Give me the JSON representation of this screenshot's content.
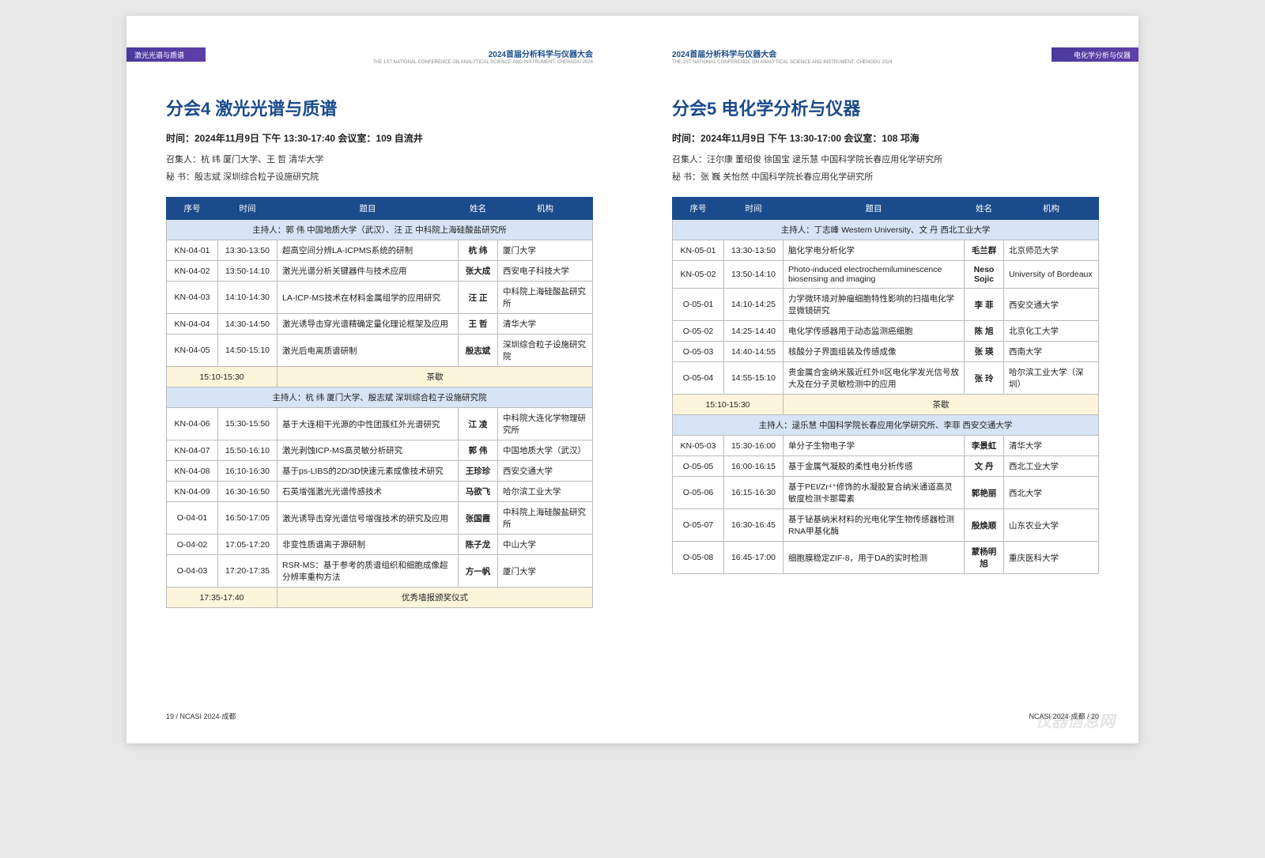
{
  "conference_header": "2024首届分析科学与仪器大会",
  "conference_sub": "THE 1ST NATIONAL CONFERENCE ON ANALYTICAL SCIENCE AND INSTRUMENT, CHENGDU 2024",
  "left_page": {
    "band_label": "激光光谱与质谱",
    "footer": "19 / NCASI 2024·成都",
    "title": "分会4  激光光谱与质谱",
    "info": "时间：2024年11月9日 下午   13:30-17:40   会议室：109 自流井",
    "conveners": "召集人：杭 纬 厦门大学、王 哲 清华大学",
    "secretary": "秘   书：殷志斌 深圳综合粒子设施研究院",
    "columns": {
      "id": "序号",
      "time": "时间",
      "title": "题目",
      "name": "姓名",
      "org": "机构"
    },
    "host1": "主持人：郭 伟 中国地质大学（武汉）、汪 正 中科院上海硅酸盐研究所",
    "rows1": [
      {
        "id": "KN-04-01",
        "time": "13:30-13:50",
        "title": "超高空间分辨LA-ICPMS系统的研制",
        "name": "杭 纬",
        "org": "厦门大学"
      },
      {
        "id": "KN-04-02",
        "time": "13:50-14:10",
        "title": "激光光谱分析关键器件与技术应用",
        "name": "张大成",
        "org": "西安电子科技大学"
      },
      {
        "id": "KN-04-03",
        "time": "14:10-14:30",
        "title": "LA-ICP-MS技术在材料金属组学的应用研究",
        "name": "汪 正",
        "org": "中科院上海硅酸盐研究所"
      },
      {
        "id": "KN-04-04",
        "time": "14:30-14:50",
        "title": "激光诱导击穿光谱精确定量化理论框架及应用",
        "name": "王 哲",
        "org": "清华大学"
      },
      {
        "id": "KN-04-05",
        "time": "14:50-15:10",
        "title": "激光后电离质谱研制",
        "name": "殷志斌",
        "org": "深圳综合粒子设施研究院"
      }
    ],
    "break1_time": "15:10-15:30",
    "break_label": "茶歇",
    "host2": "主持人：杭 纬 厦门大学、殷志斌 深圳综合粒子设施研究院",
    "rows2": [
      {
        "id": "KN-04-06",
        "time": "15:30-15:50",
        "title": "基于大连相干光源的中性团簇红外光谱研究",
        "name": "江 凌",
        "org": "中科院大连化学物理研究所"
      },
      {
        "id": "KN-04-07",
        "time": "15:50-16:10",
        "title": "激光剥蚀ICP-MS高灵敏分析研究",
        "name": "郭 伟",
        "org": "中国地质大学（武汉）"
      },
      {
        "id": "KN-04-08",
        "time": "16:10-16:30",
        "title": "基于ps-LIBS的2D/3D快速元素成像技术研究",
        "name": "王珍珍",
        "org": "西安交通大学"
      },
      {
        "id": "KN-04-09",
        "time": "16:30-16:50",
        "title": "石英增强激光光谱传感技术",
        "name": "马欲飞",
        "org": "哈尔滨工业大学"
      },
      {
        "id": "O-04-01",
        "time": "16:50-17:05",
        "title": "激光诱导击穿光谱信号增强技术的研究及应用",
        "name": "张国霞",
        "org": "中科院上海硅酸盐研究所"
      },
      {
        "id": "O-04-02",
        "time": "17:05-17:20",
        "title": "非变性质谱离子源研制",
        "name": "陈子龙",
        "org": "中山大学"
      },
      {
        "id": "O-04-03",
        "time": "17:20-17:35",
        "title": "RSR-MS：基于参考的质谱组织和细胞成像超分辨率重构方法",
        "name": "方一帆",
        "org": "厦门大学"
      }
    ],
    "break2_time": "17:35-17:40",
    "award_label": "优秀墙报颁奖仪式"
  },
  "right_page": {
    "band_label": "电化学分析与仪器",
    "footer": "NCASI 2024·成都 / 20",
    "title": "分会5  电化学分析与仪器",
    "info": "时间：2024年11月9日 下午   13:30-17:00   会议室：108 邛海",
    "conveners": "召集人：汪尔康 董绍俊 徐国宝 逯乐慧 中国科学院长春应用化学研究所",
    "secretary": "秘   书：张 巍 关怡然 中国科学院长春应用化学研究所",
    "columns": {
      "id": "序号",
      "time": "时间",
      "title": "题目",
      "name": "姓名",
      "org": "机构"
    },
    "host1": "主持人：丁志峰 Western University、文 丹 西北工业大学",
    "rows1": [
      {
        "id": "KN-05-01",
        "time": "13:30-13:50",
        "title": "脑化学电分析化学",
        "name": "毛兰群",
        "org": "北京师范大学"
      },
      {
        "id": "KN-05-02",
        "time": "13:50-14:10",
        "title": "Photo-induced electrochemiluminescence biosensing and imaging",
        "name": "Neso Sojic",
        "org": "University of Bordeaux"
      },
      {
        "id": "O-05-01",
        "time": "14:10-14:25",
        "title": "力学微环境对肿瘤细胞特性影响的扫描电化学显微镜研究",
        "name": "李 菲",
        "org": "西安交通大学"
      },
      {
        "id": "O-05-02",
        "time": "14:25-14:40",
        "title": "电化学传感器用于动态监测癌细胞",
        "name": "陈 旭",
        "org": "北京化工大学"
      },
      {
        "id": "O-05-03",
        "time": "14:40-14:55",
        "title": "核酸分子界面组装及传感成像",
        "name": "张 瑛",
        "org": "西南大学"
      },
      {
        "id": "O-05-04",
        "time": "14:55-15:10",
        "title": "贵金属合金纳米簇近红外II区电化学发光信号放大及在分子灵敏检测中的应用",
        "name": "张 玲",
        "org": "哈尔滨工业大学（深圳）"
      }
    ],
    "break1_time": "15:10-15:30",
    "break_label": "茶歇",
    "host2": "主持人：逯乐慧 中国科学院长春应用化学研究所、李菲 西安交通大学",
    "rows2": [
      {
        "id": "KN-05-03",
        "time": "15:30-16:00",
        "title": "单分子生物电子学",
        "name": "李景虹",
        "org": "清华大学"
      },
      {
        "id": "O-05-05",
        "time": "16:00-16:15",
        "title": "基于金属气凝胶的柔性电分析传感",
        "name": "文 丹",
        "org": "西北工业大学"
      },
      {
        "id": "O-05-06",
        "time": "16:15-16:30",
        "title": "基于PEI/Zr⁴⁺修饰的水凝胶复合纳米通道高灵敏度检测卡那霉素",
        "name": "郭艳丽",
        "org": "西北大学"
      },
      {
        "id": "O-05-07",
        "time": "16:30-16:45",
        "title": "基于铋基纳米材料的光电化学生物传感器检测RNA甲基化酶",
        "name": "殷焕顺",
        "org": "山东农业大学"
      },
      {
        "id": "O-05-08",
        "time": "16:45-17:00",
        "title": "细胞膜稳定ZIF-8，用于DA的实时检测",
        "name": "蒙杨明旭",
        "org": "重庆医科大学"
      }
    ]
  },
  "watermark": "仪器信息网"
}
